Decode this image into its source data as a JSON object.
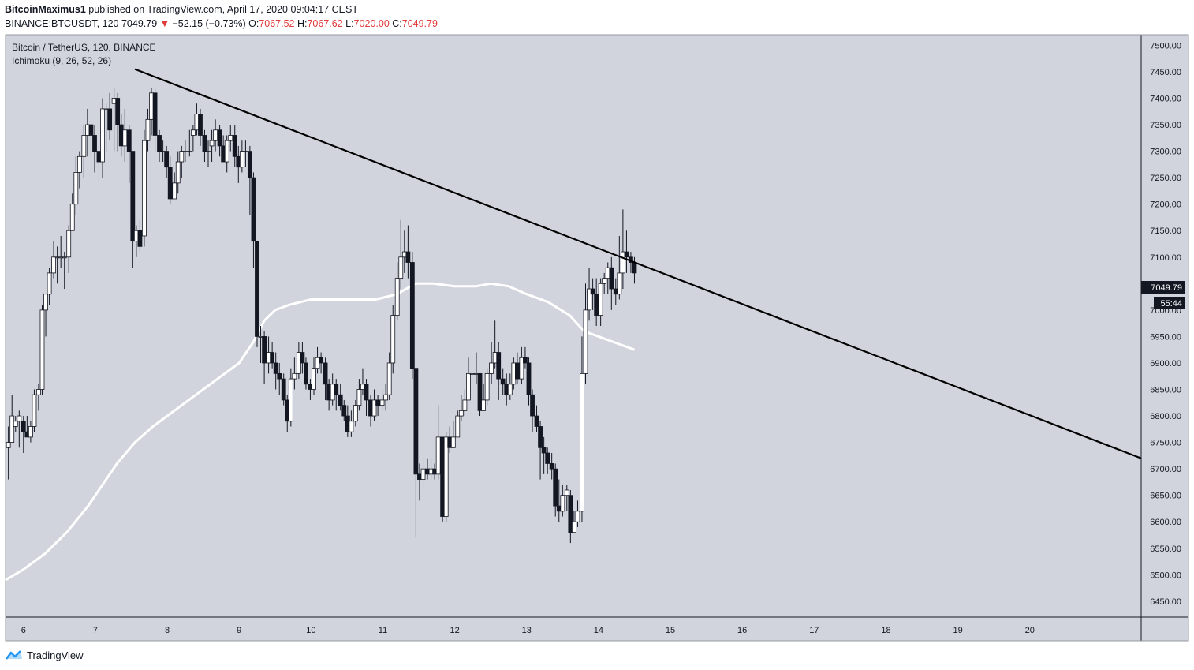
{
  "header": {
    "author": "BitcoinMaximus1",
    "published_text": "published on TradingView.com, April 17, 2020 09:04:17 CEST",
    "symbol": "BINANCE:BTCUSDT, 120",
    "last": "7049.79",
    "change_arrow": "▼",
    "change": "−52.15 (−0.73%)",
    "o_label": "O:",
    "o_value": "7067.52",
    "h_label": "H:",
    "h_value": "7067.62",
    "l_label": "L:",
    "l_value": "7020.00",
    "c_label": "C:",
    "c_value": "7049.79"
  },
  "legend": {
    "title": "Bitcoin / TetherUS, 120, BINANCE",
    "indicator": "Ichimoku (9, 26, 52, 26)"
  },
  "price_tag": {
    "price": "7049.79",
    "countdown": "55:44"
  },
  "brand": {
    "name": "TradingView"
  },
  "colors": {
    "background": "#d1d4dc",
    "bull": "#ffffff",
    "bear": "#131722",
    "trendline": "#000000",
    "ichimoku_line": "#ffffff",
    "axis_text": "#131722"
  },
  "chart_data": {
    "type": "candlestick",
    "title": "Bitcoin / TetherUS, 120, BINANCE",
    "x_ticks": [
      "6",
      "7",
      "8",
      "9",
      "10",
      "11",
      "12",
      "13",
      "14",
      "15",
      "16",
      "17",
      "18",
      "19",
      "20"
    ],
    "y_ticks": [
      "6450.00",
      "6500.00",
      "6550.00",
      "6600.00",
      "6650.00",
      "6700.00",
      "6750.00",
      "6800.00",
      "6850.00",
      "6900.00",
      "6950.00",
      "7000.00",
      "7050.00",
      "7100.00",
      "7150.00",
      "7200.00",
      "7250.00",
      "7300.00",
      "7350.00",
      "7400.00",
      "7450.00",
      "7500.00"
    ],
    "ylim": [
      6420,
      7520
    ],
    "xlim": [
      5.75,
      21.55
    ],
    "candles": [
      [
        5.79,
        6740,
        6750,
        6680,
        6780
      ],
      [
        5.84,
        6750,
        6800,
        6750,
        6840
      ],
      [
        5.89,
        6780,
        6790,
        6770,
        6800
      ],
      [
        5.94,
        6790,
        6800,
        6740,
        6810
      ],
      [
        6.0,
        6790,
        6770,
        6730,
        6800
      ],
      [
        6.05,
        6770,
        6760,
        6760,
        6800
      ],
      [
        6.1,
        6760,
        6780,
        6750,
        6790
      ],
      [
        6.15,
        6780,
        6840,
        6770,
        6850
      ],
      [
        6.21,
        6840,
        6850,
        6810,
        6860
      ],
      [
        6.26,
        6850,
        7000,
        6840,
        7010
      ],
      [
        6.31,
        7000,
        7030,
        6950,
        7030
      ],
      [
        6.36,
        7030,
        7070,
        7010,
        7080
      ],
      [
        6.42,
        7070,
        7100,
        7060,
        7130
      ],
      [
        6.47,
        7100,
        7100,
        7050,
        7120
      ],
      [
        6.52,
        7100,
        7100,
        7080,
        7140
      ],
      [
        6.57,
        7100,
        7100,
        7040,
        7110
      ],
      [
        6.63,
        7100,
        7150,
        7070,
        7160
      ],
      [
        6.68,
        7150,
        7200,
        7150,
        7220
      ],
      [
        6.73,
        7200,
        7260,
        7180,
        7290
      ],
      [
        6.78,
        7260,
        7290,
        7230,
        7300
      ],
      [
        6.84,
        7290,
        7330,
        7250,
        7350
      ],
      [
        6.89,
        7330,
        7350,
        7290,
        7380
      ],
      [
        6.94,
        7350,
        7330,
        7290,
        7350
      ],
      [
        6.99,
        7330,
        7300,
        7260,
        7350
      ],
      [
        7.05,
        7300,
        7280,
        7240,
        7310
      ],
      [
        7.1,
        7280,
        7380,
        7250,
        7400
      ],
      [
        7.15,
        7380,
        7380,
        7300,
        7390
      ],
      [
        7.2,
        7380,
        7340,
        7320,
        7410
      ],
      [
        7.26,
        7390,
        7400,
        7300,
        7420
      ],
      [
        7.31,
        7400,
        7350,
        7300,
        7410
      ],
      [
        7.36,
        7350,
        7310,
        7290,
        7370
      ],
      [
        7.41,
        7310,
        7340,
        7280,
        7380
      ],
      [
        7.47,
        7340,
        7300,
        7240,
        7350
      ],
      [
        7.52,
        7300,
        7130,
        7080,
        7300
      ],
      [
        7.57,
        7130,
        7150,
        7100,
        7160
      ],
      [
        7.62,
        7150,
        7120,
        7110,
        7170
      ],
      [
        7.68,
        7140,
        7320,
        7120,
        7340
      ],
      [
        7.73,
        7320,
        7360,
        7300,
        7380
      ],
      [
        7.78,
        7360,
        7410,
        7330,
        7420
      ],
      [
        7.83,
        7410,
        7330,
        7300,
        7420
      ],
      [
        7.89,
        7330,
        7300,
        7280,
        7340
      ],
      [
        7.94,
        7300,
        7300,
        7280,
        7320
      ],
      [
        7.99,
        7300,
        7270,
        7250,
        7310
      ],
      [
        8.04,
        7270,
        7210,
        7200,
        7290
      ],
      [
        8.1,
        7210,
        7240,
        7210,
        7260
      ],
      [
        8.15,
        7240,
        7280,
        7220,
        7300
      ],
      [
        8.2,
        7280,
        7300,
        7250,
        7310
      ],
      [
        8.25,
        7300,
        7300,
        7280,
        7320
      ],
      [
        8.31,
        7300,
        7300,
        7290,
        7340
      ],
      [
        8.36,
        7330,
        7340,
        7300,
        7350
      ],
      [
        8.41,
        7340,
        7370,
        7330,
        7390
      ],
      [
        8.46,
        7370,
        7330,
        7310,
        7380
      ],
      [
        8.52,
        7330,
        7300,
        7280,
        7340
      ],
      [
        8.57,
        7300,
        7300,
        7270,
        7320
      ],
      [
        8.62,
        7310,
        7320,
        7280,
        7340
      ],
      [
        8.67,
        7320,
        7340,
        7300,
        7360
      ],
      [
        8.73,
        7340,
        7310,
        7290,
        7350
      ],
      [
        8.78,
        7310,
        7280,
        7280,
        7330
      ],
      [
        8.83,
        7280,
        7320,
        7260,
        7330
      ],
      [
        8.88,
        7320,
        7330,
        7300,
        7350
      ],
      [
        8.94,
        7330,
        7290,
        7270,
        7350
      ],
      [
        8.99,
        7290,
        7270,
        7240,
        7310
      ],
      [
        9.04,
        7270,
        7300,
        7260,
        7320
      ],
      [
        9.09,
        7300,
        7300,
        7270,
        7320
      ],
      [
        9.15,
        7300,
        7250,
        7180,
        7310
      ],
      [
        9.2,
        7250,
        7130,
        7080,
        7260
      ],
      [
        9.25,
        7130,
        6950,
        6930,
        7130
      ],
      [
        9.3,
        6950,
        6950,
        6900,
        6970
      ],
      [
        9.35,
        6950,
        6900,
        6860,
        6960
      ],
      [
        9.41,
        6900,
        6920,
        6880,
        6950
      ],
      [
        9.46,
        6920,
        6900,
        6890,
        6940
      ],
      [
        9.51,
        6900,
        6880,
        6850,
        6920
      ],
      [
        9.56,
        6880,
        6870,
        6840,
        6900
      ],
      [
        9.62,
        6870,
        6830,
        6820,
        6880
      ],
      [
        9.67,
        6830,
        6790,
        6770,
        6840
      ],
      [
        9.72,
        6790,
        6870,
        6780,
        6890
      ],
      [
        9.77,
        6870,
        6880,
        6850,
        6910
      ],
      [
        9.83,
        6880,
        6920,
        6870,
        6940
      ],
      [
        9.88,
        6920,
        6900,
        6880,
        6940
      ],
      [
        9.93,
        6900,
        6860,
        6850,
        6910
      ],
      [
        9.99,
        6860,
        6850,
        6830,
        6870
      ],
      [
        10.04,
        6850,
        6890,
        6840,
        6910
      ],
      [
        10.09,
        6890,
        6910,
        6880,
        6930
      ],
      [
        10.14,
        6910,
        6900,
        6880,
        6920
      ],
      [
        10.2,
        6900,
        6860,
        6830,
        6910
      ],
      [
        10.25,
        6860,
        6830,
        6810,
        6870
      ],
      [
        10.3,
        6830,
        6860,
        6820,
        6880
      ],
      [
        10.35,
        6860,
        6840,
        6810,
        6870
      ],
      [
        10.41,
        6840,
        6820,
        6810,
        6860
      ],
      [
        10.46,
        6820,
        6800,
        6790,
        6830
      ],
      [
        10.51,
        6800,
        6770,
        6760,
        6820
      ],
      [
        10.56,
        6770,
        6790,
        6760,
        6810
      ],
      [
        10.62,
        6790,
        6820,
        6780,
        6830
      ],
      [
        10.67,
        6820,
        6850,
        6810,
        6870
      ],
      [
        10.72,
        6850,
        6860,
        6840,
        6890
      ],
      [
        10.77,
        6860,
        6830,
        6800,
        6870
      ],
      [
        10.83,
        6830,
        6800,
        6780,
        6840
      ],
      [
        10.88,
        6800,
        6830,
        6790,
        6850
      ],
      [
        10.93,
        6830,
        6820,
        6800,
        6840
      ],
      [
        10.99,
        6820,
        6830,
        6810,
        6850
      ],
      [
        11.04,
        6830,
        6840,
        6810,
        6860
      ],
      [
        11.09,
        6840,
        6900,
        6830,
        6920
      ],
      [
        11.14,
        6900,
        6990,
        6880,
        7010
      ],
      [
        11.2,
        6990,
        7060,
        6980,
        7090
      ],
      [
        11.25,
        7060,
        7100,
        7040,
        7170
      ],
      [
        11.3,
        7100,
        7110,
        7070,
        7150
      ],
      [
        11.35,
        7110,
        7090,
        7060,
        7160
      ],
      [
        11.41,
        7090,
        6890,
        6870,
        7110
      ],
      [
        11.46,
        6890,
        6690,
        6570,
        6890
      ],
      [
        11.51,
        6690,
        6680,
        6640,
        6710
      ],
      [
        11.56,
        6680,
        6700,
        6660,
        6720
      ],
      [
        11.62,
        6700,
        6690,
        6680,
        6720
      ],
      [
        11.67,
        6690,
        6700,
        6680,
        6720
      ],
      [
        11.72,
        6700,
        6690,
        6680,
        6710
      ],
      [
        11.77,
        6690,
        6760,
        6680,
        6820
      ],
      [
        11.83,
        6760,
        6610,
        6600,
        6760
      ],
      [
        11.88,
        6610,
        6760,
        6600,
        6770
      ],
      [
        11.93,
        6760,
        6740,
        6730,
        6780
      ],
      [
        11.98,
        6740,
        6760,
        6740,
        6790
      ],
      [
        12.04,
        6760,
        6800,
        6760,
        6810
      ],
      [
        12.09,
        6800,
        6810,
        6790,
        6840
      ],
      [
        12.14,
        6810,
        6830,
        6800,
        6850
      ],
      [
        12.19,
        6830,
        6880,
        6830,
        6910
      ],
      [
        12.24,
        6880,
        6880,
        6860,
        6900
      ],
      [
        12.3,
        6880,
        6880,
        6860,
        6920
      ],
      [
        12.35,
        6880,
        6810,
        6800,
        6880
      ],
      [
        12.4,
        6810,
        6830,
        6810,
        6860
      ],
      [
        12.45,
        6830,
        6880,
        6820,
        6890
      ],
      [
        12.51,
        6880,
        6900,
        6860,
        6940
      ],
      [
        12.56,
        6900,
        6920,
        6890,
        6980
      ],
      [
        12.61,
        6920,
        6870,
        6830,
        6940
      ],
      [
        12.67,
        6870,
        6860,
        6840,
        6890
      ],
      [
        12.72,
        6860,
        6840,
        6820,
        6880
      ],
      [
        12.77,
        6840,
        6860,
        6830,
        6880
      ],
      [
        12.82,
        6860,
        6900,
        6850,
        6910
      ],
      [
        12.87,
        6900,
        6870,
        6860,
        6920
      ],
      [
        12.93,
        6870,
        6910,
        6860,
        6930
      ],
      [
        12.98,
        6910,
        6900,
        6890,
        6930
      ],
      [
        13.03,
        6900,
        6840,
        6820,
        6910
      ],
      [
        13.08,
        6840,
        6800,
        6770,
        6850
      ],
      [
        13.14,
        6800,
        6780,
        6770,
        6820
      ],
      [
        13.19,
        6780,
        6740,
        6680,
        6790
      ],
      [
        13.24,
        6740,
        6730,
        6690,
        6760
      ],
      [
        13.29,
        6730,
        6710,
        6690,
        6740
      ],
      [
        13.35,
        6710,
        6700,
        6680,
        6730
      ],
      [
        13.4,
        6700,
        6630,
        6610,
        6710
      ],
      [
        13.45,
        6630,
        6620,
        6600,
        6680
      ],
      [
        13.5,
        6620,
        6650,
        6610,
        6670
      ],
      [
        13.56,
        6650,
        6660,
        6620,
        6670
      ],
      [
        13.61,
        6650,
        6580,
        6560,
        6660
      ],
      [
        13.66,
        6580,
        6600,
        6580,
        6620
      ],
      [
        13.71,
        6600,
        6620,
        6590,
        6640
      ],
      [
        13.77,
        6620,
        6880,
        6600,
        6950
      ],
      [
        13.82,
        6880,
        7000,
        6860,
        7050
      ],
      [
        13.87,
        7000,
        7040,
        6980,
        7080
      ],
      [
        13.92,
        7040,
        7030,
        7000,
        7060
      ],
      [
        13.97,
        7030,
        6990,
        6970,
        7060
      ],
      [
        14.03,
        6990,
        7050,
        6970,
        7060
      ],
      [
        14.08,
        7050,
        7060,
        7030,
        7070
      ],
      [
        14.13,
        7060,
        7080,
        7030,
        7090
      ],
      [
        14.18,
        7080,
        7040,
        7000,
        7100
      ],
      [
        14.24,
        7040,
        7030,
        7010,
        7060
      ],
      [
        14.29,
        7030,
        7070,
        7020,
        7140
      ],
      [
        14.34,
        7070,
        7110,
        7040,
        7190
      ],
      [
        14.39,
        7110,
        7100,
        7070,
        7150
      ],
      [
        14.45,
        7100,
        7090,
        7070,
        7110
      ],
      [
        14.5,
        7090,
        7070,
        7050,
        7100
      ]
    ],
    "trendline": {
      "from": [
        7.55,
        7455
      ],
      "to": [
        21.55,
        6720
      ]
    },
    "ichimoku_line": [
      [
        5.75,
        6490
      ],
      [
        6.0,
        6510
      ],
      [
        6.3,
        6540
      ],
      [
        6.6,
        6580
      ],
      [
        6.9,
        6630
      ],
      [
        7.1,
        6670
      ],
      [
        7.3,
        6710
      ],
      [
        7.55,
        6750
      ],
      [
        7.8,
        6780
      ],
      [
        8.1,
        6810
      ],
      [
        8.4,
        6840
      ],
      [
        8.7,
        6870
      ],
      [
        9.0,
        6900
      ],
      [
        9.2,
        6940
      ],
      [
        9.35,
        6980
      ],
      [
        9.5,
        7000
      ],
      [
        9.7,
        7010
      ],
      [
        10.0,
        7020
      ],
      [
        10.3,
        7020
      ],
      [
        10.6,
        7020
      ],
      [
        10.9,
        7020
      ],
      [
        11.2,
        7030
      ],
      [
        11.45,
        7050
      ],
      [
        11.7,
        7050
      ],
      [
        12.0,
        7045
      ],
      [
        12.3,
        7045
      ],
      [
        12.5,
        7050
      ],
      [
        12.75,
        7045
      ],
      [
        13.0,
        7030
      ],
      [
        13.3,
        7015
      ],
      [
        13.6,
        6990
      ],
      [
        13.8,
        6960
      ],
      [
        14.0,
        6950
      ],
      [
        14.2,
        6940
      ],
      [
        14.5,
        6925
      ]
    ]
  }
}
